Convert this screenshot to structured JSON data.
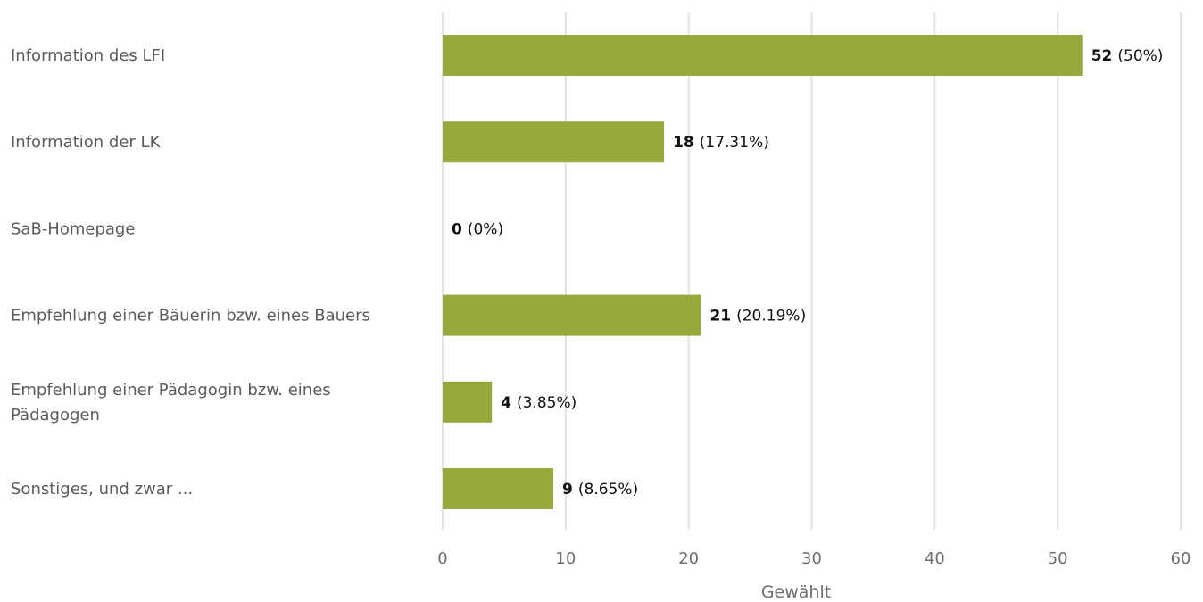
{
  "chart_data": {
    "type": "bar",
    "orientation": "horizontal",
    "categories": [
      [
        "Information des LFI"
      ],
      [
        "Information der LK"
      ],
      [
        "SaB-Homepage"
      ],
      [
        "Empfehlung einer Bäuerin bzw. eines Bauers"
      ],
      [
        "Empfehlung einer Pädagogin bzw. eines",
        "Pädagogen"
      ],
      [
        "Sonstiges, und zwar ..."
      ]
    ],
    "values": [
      52,
      18,
      0,
      21,
      4,
      9
    ],
    "value_labels": [
      "52",
      "18",
      "0",
      "21",
      "4",
      "9"
    ],
    "percent_labels": [
      "(50%)",
      "(17.31%)",
      "(0%)",
      "(20.19%)",
      "(3.85%)",
      "(8.65%)"
    ],
    "xlabel": "Gewählt",
    "xlim": [
      0,
      60
    ],
    "xticks": [
      0,
      10,
      20,
      30,
      40,
      50,
      60
    ],
    "grid": true,
    "bar_color": "#97a83c",
    "grid_color": "#e3e3e3"
  }
}
